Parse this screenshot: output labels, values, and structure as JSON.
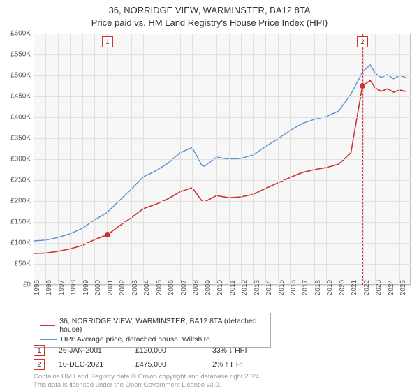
{
  "title_line1": "36, NORRIDGE VIEW, WARMINSTER, BA12 8TA",
  "title_line2": "Price paid vs. HM Land Registry's House Price Index (HPI)",
  "chart": {
    "type": "line",
    "background_color": "#f7f7f7",
    "grid_color": "#e0e0e0",
    "border_color": "#c0c0c0",
    "text_color": "#555555",
    "title_fontsize": 13,
    "label_fontsize": 10,
    "x": {
      "min": 1995,
      "max": 2025.9,
      "tick_step": 1,
      "ticks": [
        1995,
        1996,
        1997,
        1998,
        1999,
        2000,
        2001,
        2002,
        2003,
        2004,
        2005,
        2006,
        2007,
        2008,
        2009,
        2010,
        2011,
        2012,
        2013,
        2014,
        2015,
        2016,
        2017,
        2018,
        2019,
        2020,
        2021,
        2022,
        2023,
        2024,
        2025
      ]
    },
    "y": {
      "min": 0,
      "max": 600000,
      "tick_step": 50000,
      "ticks": [
        0,
        50000,
        100000,
        150000,
        200000,
        250000,
        300000,
        350000,
        400000,
        450000,
        500000,
        550000,
        600000
      ],
      "fmt_prefix": "£",
      "fmt_suffix": "K",
      "fmt_div": 1000
    },
    "series": [
      {
        "name": "hpi",
        "label": "HPI: Average price, detached house, Wiltshire",
        "color": "#5b8fd6",
        "width": 1.4,
        "points": [
          [
            1995,
            105000
          ],
          [
            1996,
            107000
          ],
          [
            1997,
            113000
          ],
          [
            1998,
            122000
          ],
          [
            1999,
            135000
          ],
          [
            2000,
            155000
          ],
          [
            2001,
            172000
          ],
          [
            2002,
            200000
          ],
          [
            2003,
            228000
          ],
          [
            2004,
            258000
          ],
          [
            2005,
            272000
          ],
          [
            2006,
            290000
          ],
          [
            2007,
            315000
          ],
          [
            2008,
            328000
          ],
          [
            2008.8,
            285000
          ],
          [
            2009,
            283000
          ],
          [
            2010,
            305000
          ],
          [
            2011,
            300000
          ],
          [
            2012,
            302000
          ],
          [
            2013,
            310000
          ],
          [
            2014,
            330000
          ],
          [
            2015,
            348000
          ],
          [
            2016,
            368000
          ],
          [
            2017,
            385000
          ],
          [
            2018,
            395000
          ],
          [
            2019,
            402000
          ],
          [
            2020,
            415000
          ],
          [
            2021,
            455000
          ],
          [
            2022,
            510000
          ],
          [
            2022.6,
            525000
          ],
          [
            2023,
            505000
          ],
          [
            2023.5,
            495000
          ],
          [
            2024,
            502000
          ],
          [
            2024.5,
            492000
          ],
          [
            2025,
            500000
          ],
          [
            2025.5,
            495000
          ]
        ]
      },
      {
        "name": "price_paid",
        "label": "36, NORRIDGE VIEW, WARMINSTER, BA12 8TA (detached house)",
        "color": "#d03030",
        "width": 1.6,
        "points": [
          [
            1995,
            75000
          ],
          [
            1996,
            76000
          ],
          [
            1997,
            80000
          ],
          [
            1998,
            86000
          ],
          [
            1999,
            94000
          ],
          [
            2000,
            108000
          ],
          [
            2001.07,
            120000
          ],
          [
            2002,
            140000
          ],
          [
            2003,
            160000
          ],
          [
            2004,
            182000
          ],
          [
            2005,
            192000
          ],
          [
            2006,
            205000
          ],
          [
            2007,
            222000
          ],
          [
            2008,
            232000
          ],
          [
            2008.8,
            200000
          ],
          [
            2009,
            198000
          ],
          [
            2010,
            213000
          ],
          [
            2011,
            208000
          ],
          [
            2012,
            210000
          ],
          [
            2013,
            216000
          ],
          [
            2014,
            230000
          ],
          [
            2015,
            243000
          ],
          [
            2016,
            256000
          ],
          [
            2017,
            268000
          ],
          [
            2018,
            275000
          ],
          [
            2019,
            280000
          ],
          [
            2020,
            288000
          ],
          [
            2021,
            315000
          ],
          [
            2021.95,
            475000
          ],
          [
            2022.6,
            488000
          ],
          [
            2023,
            470000
          ],
          [
            2023.5,
            462000
          ],
          [
            2024,
            468000
          ],
          [
            2024.5,
            460000
          ],
          [
            2025,
            465000
          ],
          [
            2025.5,
            462000
          ]
        ]
      }
    ],
    "sale_markers": [
      {
        "n": "1",
        "x": 2001.07,
        "y": 120000,
        "color": "#d03030"
      },
      {
        "n": "2",
        "x": 2021.95,
        "y": 475000,
        "color": "#d03030"
      }
    ]
  },
  "legend": {
    "rows": [
      {
        "color": "#d03030",
        "label": "36, NORRIDGE VIEW, WARMINSTER, BA12 8TA (detached house)"
      },
      {
        "color": "#5b8fd6",
        "label": "HPI: Average price, detached house, Wiltshire"
      }
    ]
  },
  "annotations": [
    {
      "n": "1",
      "color": "#d03030",
      "date": "26-JAN-2001",
      "price": "£120,000",
      "delta": "33% ↓ HPI"
    },
    {
      "n": "2",
      "color": "#d03030",
      "date": "10-DEC-2021",
      "price": "£475,000",
      "delta": "2% ↑ HPI"
    }
  ],
  "footer_line1": "Contains HM Land Registry data © Crown copyright and database right 2024.",
  "footer_line2": "This data is licensed under the Open Government Licence v3.0."
}
